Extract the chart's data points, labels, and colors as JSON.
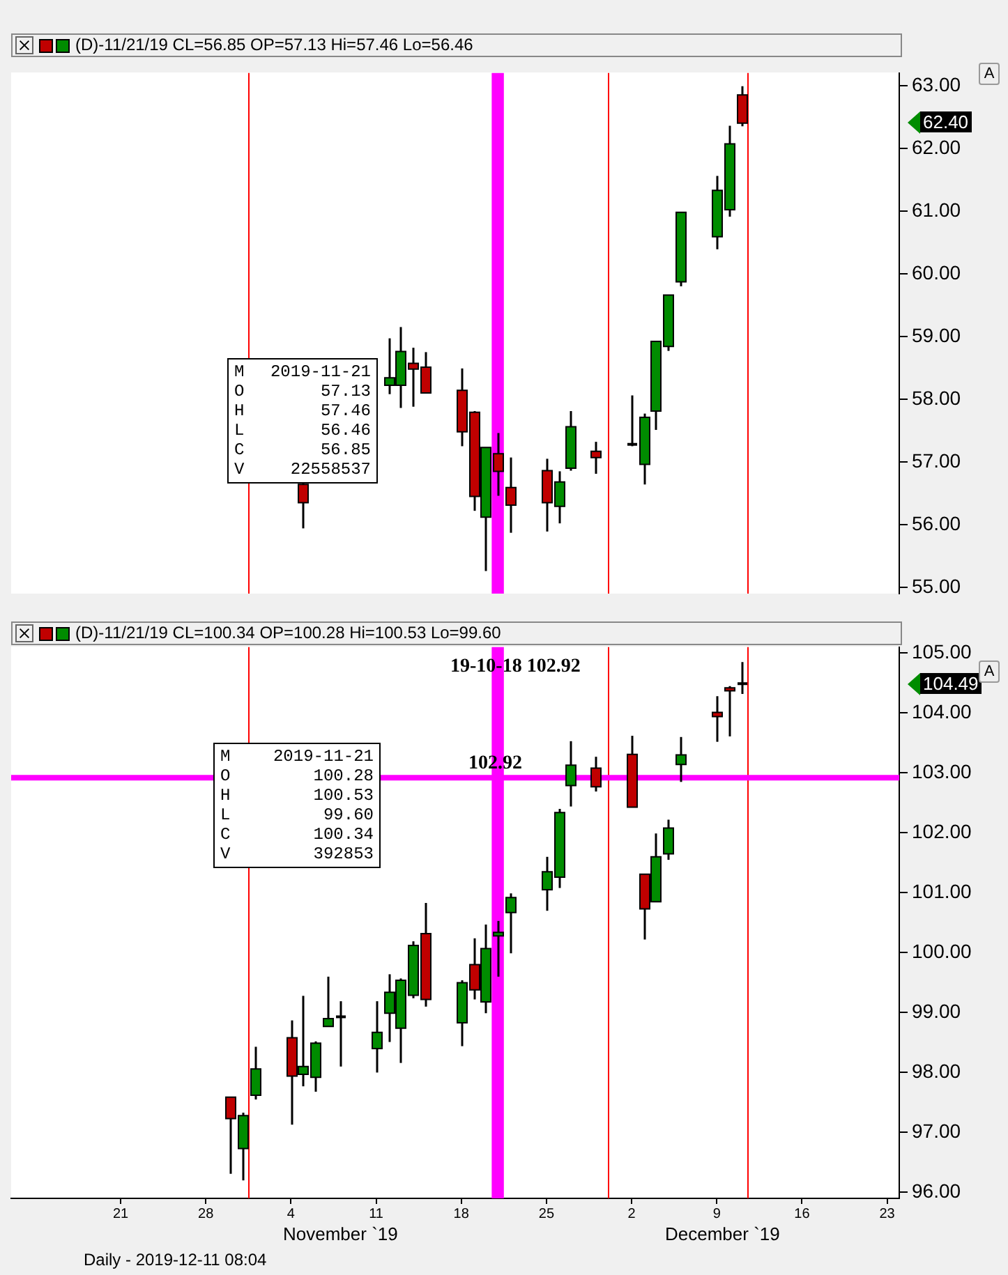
{
  "chart_data": [
    {
      "type": "candlestick",
      "title": "(D)-11/21/19 CL=56.85 OP=57.13 Hi=57.46 Lo=56.46",
      "x": [
        "2019-11-05",
        "2019-11-12",
        "2019-11-13",
        "2019-11-14",
        "2019-11-15",
        "2019-11-18",
        "2019-11-19",
        "2019-11-20",
        "2019-11-21",
        "2019-11-22",
        "2019-11-25",
        "2019-11-26",
        "2019-11-27",
        "2019-11-29",
        "2019-12-02",
        "2019-12-03",
        "2019-12-04",
        "2019-12-05",
        "2019-12-06",
        "2019-12-09",
        "2019-12-10",
        "2019-12-11"
      ],
      "ohlc": [
        [
          56.64,
          56.83,
          55.94,
          56.35
        ],
        [
          58.22,
          58.97,
          58.08,
          58.34
        ],
        [
          58.22,
          59.15,
          57.86,
          58.76
        ],
        [
          58.57,
          58.82,
          57.88,
          58.48
        ],
        [
          58.51,
          58.75,
          58.1,
          58.1
        ],
        [
          58.14,
          58.49,
          57.25,
          57.48
        ],
        [
          57.79,
          57.81,
          56.22,
          56.45
        ],
        [
          56.12,
          57.23,
          55.26,
          57.23
        ],
        [
          57.13,
          57.46,
          56.46,
          56.85
        ],
        [
          56.59,
          57.07,
          55.87,
          56.31
        ],
        [
          56.86,
          57.05,
          55.89,
          56.35
        ],
        [
          56.29,
          56.85,
          56.02,
          56.68
        ],
        [
          56.9,
          57.81,
          56.86,
          57.56
        ],
        [
          57.17,
          57.32,
          56.81,
          57.07
        ],
        [
          57.28,
          58.06,
          57.25,
          57.28
        ],
        [
          56.96,
          57.77,
          56.64,
          57.71
        ],
        [
          57.81,
          58.92,
          57.51,
          58.92
        ],
        [
          58.84,
          59.66,
          58.77,
          59.66
        ],
        [
          59.87,
          60.98,
          59.8,
          60.98
        ],
        [
          60.59,
          61.56,
          60.39,
          61.33
        ],
        [
          61.02,
          62.36,
          60.91,
          62.07
        ],
        [
          62.85,
          62.99,
          62.35,
          62.4
        ]
      ],
      "colors": [
        "#c00000",
        "#008c00",
        "#008c00",
        "#c00000",
        "#c00000",
        "#c00000",
        "#c00000",
        "#008c00",
        "#c00000",
        "#c00000",
        "#c00000",
        "#008c00",
        "#008c00",
        "#c00000",
        "#000000",
        "#008c00",
        "#008c00",
        "#008c00",
        "#008c00",
        "#008c00",
        "#008c00",
        "#c00000"
      ],
      "xlim": [
        "2019-10-12",
        "2019-12-24"
      ],
      "tick_labels": "y",
      "ylim": [
        54.9,
        63.2
      ],
      "yticks": [
        {
          "value": 55,
          "label": "55.00"
        },
        {
          "value": 56,
          "label": "56.00"
        },
        {
          "value": 57,
          "label": "57.00"
        },
        {
          "value": 58,
          "label": "58.00"
        },
        {
          "value": 59,
          "label": "59.00"
        },
        {
          "value": 60,
          "label": "60.00"
        },
        {
          "value": 61,
          "label": "61.00"
        },
        {
          "value": 62,
          "label": "62.00"
        },
        {
          "value": 63,
          "label": "63.00"
        }
      ],
      "grid": false,
      "legend": false,
      "ref_lines": [
        {
          "axis": "x",
          "value": "2019-10-31T12:00",
          "color": "#ff0000"
        },
        {
          "axis": "x",
          "value": "2019-11-30",
          "color": "#ff0000"
        },
        {
          "axis": "x",
          "value": "2019-12-11T12:00",
          "color": "#ff0000"
        }
      ],
      "bands": [
        {
          "axis": "x",
          "from": "2019-11-20T12:00",
          "to": "2019-11-21T12:00",
          "color": "#ff00ff"
        }
      ],
      "annotations": [
        "A",
        "M 2019-11-21",
        "O 57.13",
        "H 57.46",
        "L 56.46",
        "C 56.85",
        "V 22558537",
        "62.40"
      ]
    },
    {
      "type": "candlestick",
      "title": "(D)-11/21/19 CL=100.34 OP=100.28 Hi=100.53 Lo=99.60",
      "x": [
        "2019-10-30",
        "2019-10-31",
        "2019-11-01",
        "2019-11-04",
        "2019-11-05",
        "2019-11-06",
        "2019-11-07",
        "2019-11-08",
        "2019-11-11",
        "2019-11-12",
        "2019-11-13",
        "2019-11-14",
        "2019-11-15",
        "2019-11-18",
        "2019-11-19",
        "2019-11-20",
        "2019-11-21",
        "2019-11-22",
        "2019-11-25",
        "2019-11-26",
        "2019-11-27",
        "2019-11-29",
        "2019-12-02",
        "2019-12-03",
        "2019-12-04",
        "2019-12-05",
        "2019-12-06",
        "2019-12-09",
        "2019-12-10",
        "2019-12-11"
      ],
      "ohlc": [
        [
          97.59,
          97.59,
          96.31,
          97.23
        ],
        [
          96.73,
          97.33,
          96.2,
          97.28
        ],
        [
          97.62,
          98.43,
          97.55,
          98.06
        ],
        [
          98.58,
          98.87,
          97.13,
          97.94
        ],
        [
          97.97,
          99.28,
          97.77,
          98.1
        ],
        [
          97.92,
          98.52,
          97.68,
          98.49
        ],
        [
          98.77,
          99.6,
          98.77,
          98.9
        ],
        [
          98.93,
          99.19,
          98.1,
          98.93
        ],
        [
          98.4,
          99.19,
          98.0,
          98.67
        ],
        [
          98.99,
          99.64,
          98.51,
          99.34
        ],
        [
          98.74,
          99.57,
          98.16,
          99.54
        ],
        [
          99.29,
          100.19,
          99.24,
          100.12
        ],
        [
          100.32,
          100.83,
          99.1,
          99.22
        ],
        [
          98.83,
          99.54,
          98.44,
          99.5
        ],
        [
          99.8,
          100.24,
          99.22,
          99.38
        ],
        [
          99.18,
          100.47,
          98.99,
          100.07
        ],
        [
          100.28,
          100.53,
          99.6,
          100.34
        ],
        [
          100.67,
          100.99,
          99.99,
          100.92
        ],
        [
          101.05,
          101.6,
          100.7,
          101.35
        ],
        [
          101.26,
          102.4,
          101.08,
          102.34
        ],
        [
          102.79,
          103.53,
          102.44,
          103.13
        ],
        [
          103.08,
          103.27,
          102.69,
          102.77
        ],
        [
          103.31,
          103.62,
          102.43,
          102.43
        ],
        [
          101.31,
          101.31,
          100.22,
          100.73
        ],
        [
          100.85,
          101.99,
          100.85,
          101.6
        ],
        [
          101.65,
          102.22,
          101.55,
          102.08
        ],
        [
          103.14,
          103.6,
          102.85,
          103.3
        ],
        [
          104.01,
          104.28,
          103.52,
          103.94
        ],
        [
          104.42,
          104.45,
          103.61,
          104.37
        ],
        [
          104.49,
          104.85,
          104.32,
          104.49
        ]
      ],
      "colors": [
        "#c00000",
        "#008c00",
        "#008c00",
        "#c00000",
        "#008c00",
        "#008c00",
        "#008c00",
        "#000000",
        "#008c00",
        "#008c00",
        "#008c00",
        "#008c00",
        "#c00000",
        "#008c00",
        "#c00000",
        "#008c00",
        "#008c00",
        "#008c00",
        "#008c00",
        "#008c00",
        "#008c00",
        "#c00000",
        "#c00000",
        "#c00000",
        "#008c00",
        "#008c00",
        "#008c00",
        "#c00000",
        "#c00000",
        "#000000"
      ],
      "xlim": [
        "2019-10-12",
        "2019-12-24"
      ],
      "xticks": [
        {
          "value": "2019-10-21",
          "label": "21"
        },
        {
          "value": "2019-10-28",
          "label": "28"
        },
        {
          "value": "2019-11-04",
          "label": "4"
        },
        {
          "value": "2019-11-11",
          "label": "11"
        },
        {
          "value": "2019-11-18",
          "label": "18"
        },
        {
          "value": "2019-11-25",
          "label": "25"
        },
        {
          "value": "2019-12-02",
          "label": "2"
        },
        {
          "value": "2019-12-09",
          "label": "9"
        },
        {
          "value": "2019-12-16",
          "label": "16"
        },
        {
          "value": "2019-12-23",
          "label": "23"
        }
      ],
      "ylim": [
        95.9,
        105.1
      ],
      "yticks": [
        {
          "value": 96,
          "label": "96.00"
        },
        {
          "value": 97,
          "label": "97.00"
        },
        {
          "value": 98,
          "label": "98.00"
        },
        {
          "value": 99,
          "label": "99.00"
        },
        {
          "value": 100,
          "label": "100.00"
        },
        {
          "value": 101,
          "label": "101.00"
        },
        {
          "value": 102,
          "label": "102.00"
        },
        {
          "value": 103,
          "label": "103.00"
        },
        {
          "value": 104,
          "label": "104.00"
        },
        {
          "value": 105,
          "label": "105.00"
        }
      ],
      "grid": false,
      "legend": false,
      "ref_lines": [
        {
          "axis": "x",
          "value": "2019-10-31T12:00",
          "color": "#ff0000"
        },
        {
          "axis": "x",
          "value": "2019-11-30",
          "color": "#ff0000"
        },
        {
          "axis": "x",
          "value": "2019-12-11T12:00",
          "color": "#ff0000"
        },
        {
          "axis": "y",
          "value": 102.92,
          "label": "102.92",
          "color": "#ff00ff"
        }
      ],
      "bands": [
        {
          "axis": "x",
          "from": "2019-11-20T12:00",
          "to": "2019-11-21T12:00",
          "color": "#ff00ff"
        }
      ],
      "annotations": [
        "19-10-18 102.92",
        "A",
        "M 2019-11-21",
        "O 100.28",
        "H 100.53",
        "L 99.60",
        "C 100.34",
        "V 392853",
        "104.49",
        "November `19",
        "December `19",
        "Daily - 2019-12-11 08:04"
      ]
    }
  ]
}
